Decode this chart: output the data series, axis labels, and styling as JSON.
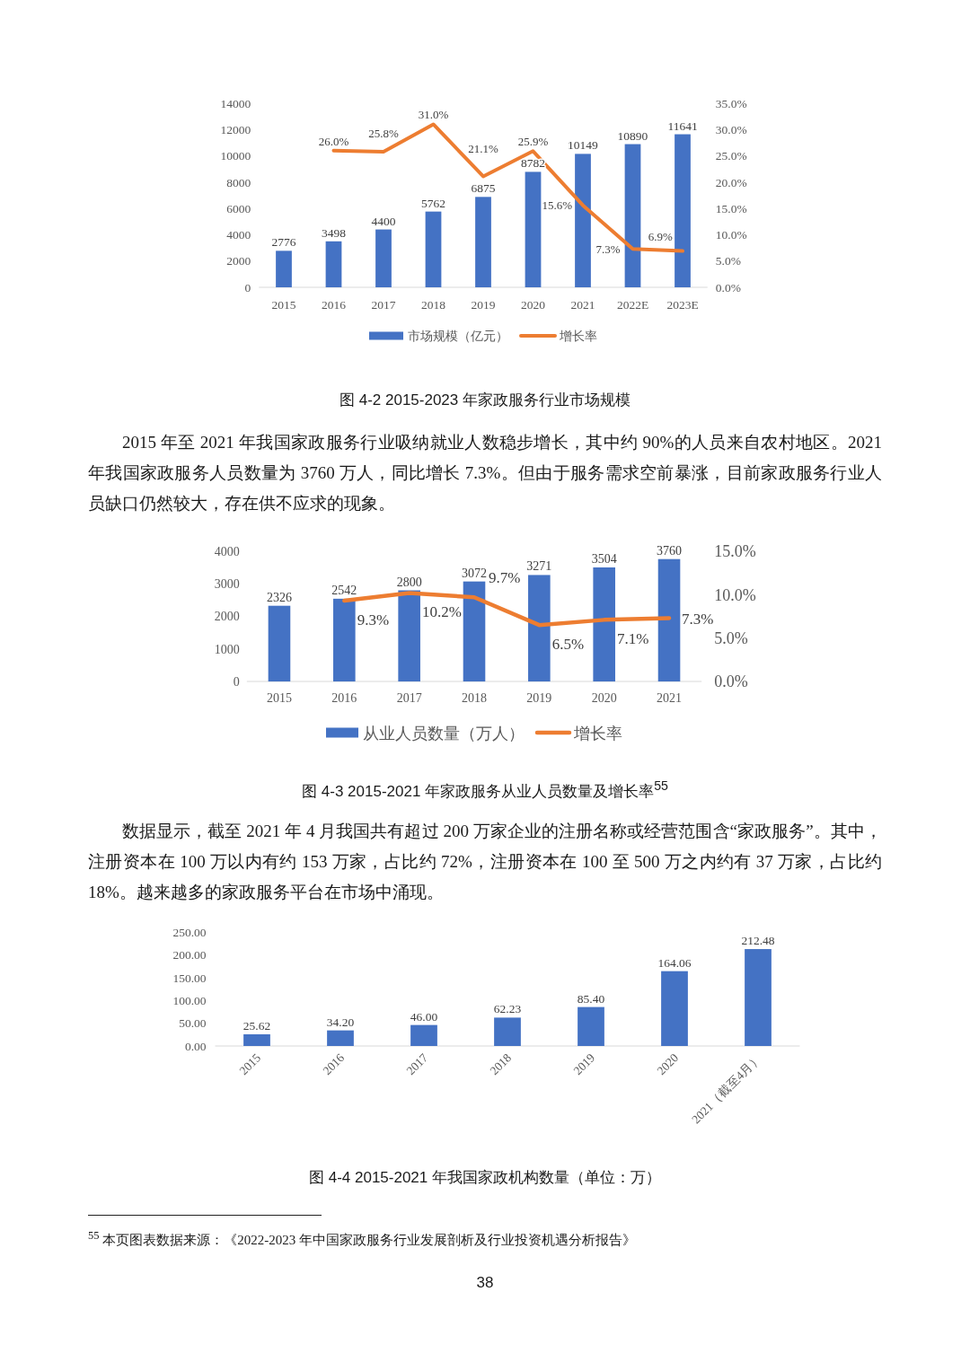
{
  "chart_data": [
    {
      "type": "bar",
      "title": "图 4-2 2015-2023 年家政服务行业市场规模",
      "categories": [
        "2015",
        "2016",
        "2017",
        "2018",
        "2019",
        "2020",
        "2021",
        "2022E",
        "2023E"
      ],
      "series": [
        {
          "name": "市场规模（亿元）",
          "color": "#4472c4",
          "values": [
            2776,
            3498,
            4400,
            5762,
            6875,
            8782,
            10149,
            10890,
            11641
          ],
          "value_labels": [
            "2776",
            "3498",
            "4400",
            "5762",
            "6875",
            "8782",
            "10149",
            "10890",
            "11641"
          ]
        },
        {
          "name": "增长率",
          "type": "line",
          "axis": "y2",
          "color": "#ed7d31",
          "values": [
            null,
            26.0,
            25.8,
            31.0,
            21.1,
            25.9,
            15.6,
            7.3,
            6.9
          ],
          "value_labels": [
            null,
            "26.0%",
            "25.8%",
            "31.0%",
            "21.1%",
            "25.9%",
            "15.6%",
            "7.3%",
            "6.9%"
          ]
        }
      ],
      "ylim": [
        0,
        14000
      ],
      "yticks": [
        0,
        2000,
        4000,
        6000,
        8000,
        10000,
        12000,
        14000
      ],
      "y2lim": [
        0,
        35
      ],
      "y2ticks": [
        {
          "value": 0,
          "label": "0.0%"
        },
        {
          "value": 5,
          "label": "5.0%"
        },
        {
          "value": 10,
          "label": "10.0%"
        },
        {
          "value": 15,
          "label": "15.0%"
        },
        {
          "value": 20,
          "label": "20.0%"
        },
        {
          "value": 25,
          "label": "25.0%"
        },
        {
          "value": 30,
          "label": "30.0%"
        },
        {
          "value": 35,
          "label": "35.0%"
        }
      ],
      "legend": "bottom",
      "annotations": [
        "2015 年至 2021 年我国家政服务行业吸纳就业人数稳步增长，其中约 90%的人员来自农村地区。2021 年我国家政服务人员数量为 3760 万人，同比增长 7.3%。但由于服务需求空前暴涨，目前家政服务行业人员缺口仍然较大，存在供不应求的现象。"
      ]
    },
    {
      "type": "bar",
      "title": "图 4-3 2015-2021 年家政服务从业人员数量及增长率$^{55}$",
      "categories": [
        "2015",
        "2016",
        "2017",
        "2018",
        "2019",
        "2020",
        "2021"
      ],
      "series": [
        {
          "name": "从业人员数量（万人）",
          "color": "#4472c4",
          "values": [
            2326,
            2542,
            2800,
            3072,
            3271,
            3504,
            3760
          ],
          "value_labels": [
            "2326",
            "2542",
            "2800",
            "3072",
            "3271",
            "3504",
            "3760"
          ]
        },
        {
          "name": "增长率",
          "type": "line",
          "axis": "y2",
          "color": "#ed7d31",
          "values": [
            null,
            9.3,
            10.2,
            9.7,
            6.5,
            7.1,
            7.3
          ],
          "value_labels": [
            null,
            "9.3%",
            "10.2%",
            "9.7%",
            "6.5%",
            "7.1%",
            "7.3%"
          ]
        }
      ],
      "ylim": [
        0,
        4000
      ],
      "yticks": [
        0,
        1000,
        2000,
        3000,
        4000
      ],
      "y2lim": [
        0,
        15
      ],
      "y2ticks": [
        {
          "value": 0,
          "label": "0.0%"
        },
        {
          "value": 5,
          "label": "5.0%"
        },
        {
          "value": 10,
          "label": "10.0%"
        },
        {
          "value": 15,
          "label": "15.0%"
        }
      ],
      "legend": "bottom",
      "annotations": [
        "数据显示，截至 2021 年 4 月我国共有超过 200 万家企业的注册名称或经营范围含“家政服务”。其中，注册资本在 100 万以内有约 153 万家，占比约 72%，注册资本在 100 至 500 万之内约有 37 万家，占比约 18%。越来越多的家政服务平台在市场中涌现。"
      ]
    },
    {
      "type": "bar",
      "title": "图 4-4 2015-2021 年我国家政机构数量（单位：万）",
      "categories": [
        "2015",
        "2016",
        "2017",
        "2018",
        "2019",
        "2020",
        "2021（截至4月）"
      ],
      "values": [
        25.62,
        34.2,
        46.0,
        62.23,
        85.4,
        164.06,
        212.48
      ],
      "value_labels": [
        "25.62",
        "34.20",
        "46.00",
        "62.23",
        "85.40",
        "164.06",
        "212.48"
      ],
      "color": "#4472c4",
      "ylim": [
        0,
        250
      ],
      "yticks": [
        {
          "value": 0,
          "label": "0.00"
        },
        {
          "value": 50,
          "label": "50.00"
        },
        {
          "value": 100,
          "label": "100.00"
        },
        {
          "value": 150,
          "label": "150.00"
        },
        {
          "value": 200,
          "label": "200.00"
        },
        {
          "value": 250,
          "label": "250.00"
        }
      ],
      "annotations": [
        "$^{55}$ 本页图表数据来源：《2022-2023 年中国家政服务行业发展剖析及行业投资机遇分析报告》",
        "38"
      ]
    }
  ]
}
